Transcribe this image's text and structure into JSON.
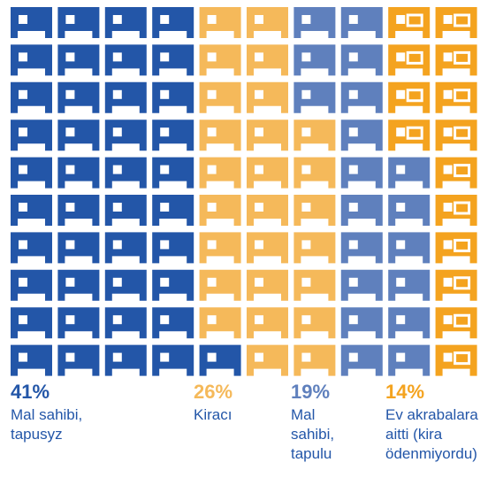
{
  "chart_data": {
    "type": "waffle",
    "grid": {
      "rows": 10,
      "columns": 10,
      "fill_order": "column-major, bottom-to-top"
    },
    "series": [
      {
        "value": 41,
        "value_label": "41%",
        "label": "Mal sahibi,\ntapusyz",
        "color": "#2356a8",
        "icon": "house-icon-solid"
      },
      {
        "value": 26,
        "value_label": "26%",
        "label": "Kiracı",
        "color": "#f5b95a",
        "icon": "house-icon-solid"
      },
      {
        "value": 19,
        "value_label": "19%",
        "label": "Mal\nsahibi,\ntapulu",
        "color": "#5f80bd",
        "icon": "house-icon-solid"
      },
      {
        "value": 14,
        "value_label": "14%",
        "label": "Ev akrabalara\naitti (kira\nödenmiyordu)",
        "color": "#f4a31f",
        "icon": "house-icon-outline"
      }
    ]
  }
}
